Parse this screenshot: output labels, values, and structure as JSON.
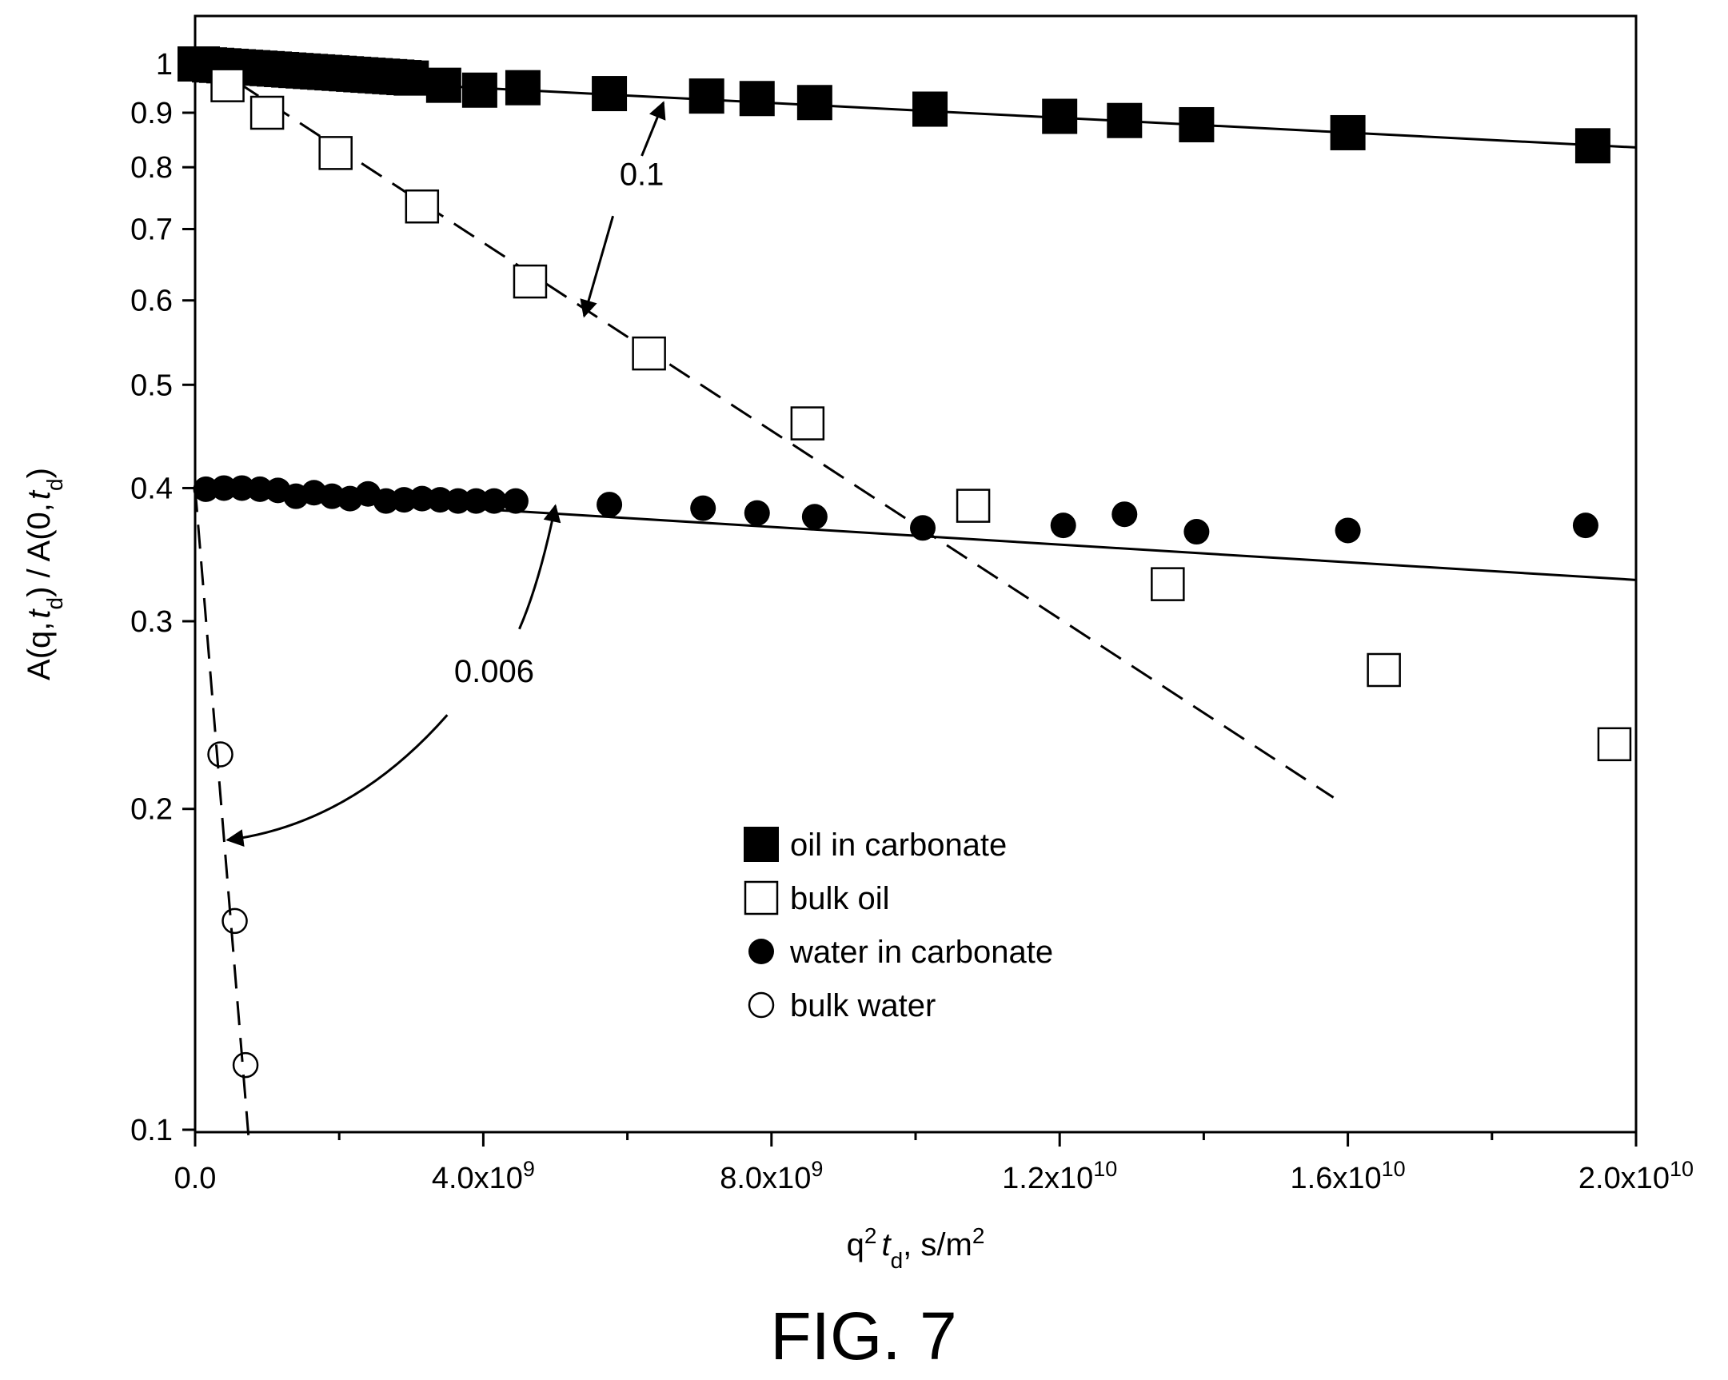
{
  "figure_caption": "FIG. 7",
  "chart_data": {
    "type": "scatter",
    "title": "",
    "xlabel": {
      "base": "q",
      "sup": "2",
      "var": "t",
      "sub": "d",
      "units": ", s/m",
      "units_sup": "2"
    },
    "ylabel": {
      "a": "A(q,",
      "var1": "t",
      "sub1": "d",
      "b": ") / A(0,",
      "var2": "t",
      "sub2": "d",
      "c": ")"
    },
    "xlim": [
      0,
      20000000000
    ],
    "ylim": [
      0.1,
      1.07
    ],
    "y_scale": "log",
    "grid": false,
    "x_ticks": [
      {
        "value": 0,
        "label": "0.0",
        "exp": ""
      },
      {
        "value": 4000000000,
        "label": "4.0x10",
        "exp": "9"
      },
      {
        "value": 8000000000,
        "label": "8.0x10",
        "exp": "9"
      },
      {
        "value": 12000000000,
        "label": "1.2x10",
        "exp": "10"
      },
      {
        "value": 16000000000,
        "label": "1.6x10",
        "exp": "10"
      },
      {
        "value": 20000000000,
        "label": "2.0x10",
        "exp": "10"
      }
    ],
    "x_minor_ticks": [
      2000000000,
      6000000000,
      10000000000,
      14000000000,
      18000000000
    ],
    "y_ticks": [
      {
        "value": 1.0,
        "label": "1"
      },
      {
        "value": 0.9,
        "label": "0.9"
      },
      {
        "value": 0.8,
        "label": "0.8"
      },
      {
        "value": 0.7,
        "label": "0.7"
      },
      {
        "value": 0.6,
        "label": "0.6"
      },
      {
        "value": 0.5,
        "label": "0.5"
      },
      {
        "value": 0.4,
        "label": "0.4"
      },
      {
        "value": 0.3,
        "label": "0.3"
      },
      {
        "value": 0.2,
        "label": "0.2"
      },
      {
        "value": 0.1,
        "label": "0.1"
      }
    ],
    "legend_position": "lower-center",
    "series": [
      {
        "name": "oil in carbonate",
        "marker": "square-filled",
        "x": [
          0,
          100000000,
          200000000,
          300000000,
          400000000,
          500000000,
          600000000,
          700000000,
          800000000,
          900000000,
          1000000000,
          1100000000,
          1200000000,
          1300000000,
          1400000000,
          1500000000,
          1600000000,
          1700000000,
          1800000000,
          1900000000,
          2000000000,
          2100000000,
          2200000000,
          2300000000,
          2400000000,
          2500000000,
          2600000000,
          2700000000,
          2800000000,
          2900000000,
          3000000000,
          3450000000,
          3950000000,
          4550000000,
          5750000000,
          7100000000,
          7800000000,
          8600000000,
          10200000000,
          12000000000,
          12900000000,
          13900000000,
          16000000000,
          19400000000
        ],
        "y": [
          1.0,
          1.0,
          0.998,
          0.997,
          0.996,
          0.995,
          0.994,
          0.993,
          0.992,
          0.991,
          0.99,
          0.989,
          0.988,
          0.987,
          0.986,
          0.985,
          0.984,
          0.983,
          0.982,
          0.981,
          0.98,
          0.979,
          0.978,
          0.977,
          0.976,
          0.975,
          0.974,
          0.973,
          0.972,
          0.971,
          0.97,
          0.955,
          0.945,
          0.95,
          0.938,
          0.933,
          0.928,
          0.92,
          0.907,
          0.893,
          0.885,
          0.877,
          0.862,
          0.838
        ]
      },
      {
        "name": "bulk oil",
        "marker": "square-open",
        "x": [
          450000000,
          1000000000,
          1950000000,
          3150000000,
          4650000000,
          6300000000,
          8500000000,
          10800000000,
          13500000000,
          16500000000,
          19700000000
        ],
        "y": [
          0.955,
          0.9,
          0.825,
          0.735,
          0.625,
          0.535,
          0.46,
          0.385,
          0.325,
          0.27,
          0.23
        ]
      },
      {
        "name": "water in carbonate",
        "marker": "circle-filled",
        "x": [
          150000000,
          400000000,
          650000000,
          900000000,
          1150000000,
          1400000000,
          1650000000,
          1900000000,
          2150000000,
          2400000000,
          2650000000,
          2900000000,
          3150000000,
          3400000000,
          3650000000,
          3900000000,
          4150000000,
          4450000000,
          5750000000,
          7050000000,
          7800000000,
          8600000000,
          10100000000,
          12050000000,
          12900000000,
          13900000000,
          16000000000,
          19300000000
        ],
        "y": [
          0.399,
          0.4,
          0.4,
          0.399,
          0.398,
          0.393,
          0.396,
          0.393,
          0.391,
          0.395,
          0.389,
          0.39,
          0.391,
          0.39,
          0.389,
          0.389,
          0.389,
          0.389,
          0.386,
          0.383,
          0.379,
          0.376,
          0.367,
          0.369,
          0.378,
          0.364,
          0.365,
          0.369
        ]
      },
      {
        "name": "bulk water",
        "marker": "circle-open",
        "x": [
          350000000,
          550000000,
          700000000
        ],
        "y": [
          0.225,
          0.157,
          0.115
        ]
      }
    ],
    "fit_lines": [
      {
        "style": "solid",
        "x": [
          0,
          20000000000
        ],
        "y": [
          0.98,
          0.835
        ]
      },
      {
        "style": "dashed",
        "x": [
          600000000,
          15800000000
        ],
        "y": [
          0.96,
          0.205
        ]
      },
      {
        "style": "solid",
        "x": [
          0,
          20000000000
        ],
        "y": [
          0.397,
          0.328
        ]
      },
      {
        "style": "dashed",
        "x": [
          0,
          750000000
        ],
        "y": [
          0.4,
          0.097
        ]
      }
    ],
    "annotations": [
      {
        "text": "0.1",
        "x": 6200000000,
        "y": 0.77
      },
      {
        "text": "0.006",
        "x": 4150000000,
        "y": 0.263
      }
    ],
    "annotation_arrows": [
      {
        "path": [
          [
            6200000000,
            0.82
          ],
          [
            6500000000,
            0.92
          ]
        ]
      },
      {
        "path": [
          [
            5800000000,
            0.72
          ],
          [
            5400000000,
            0.58
          ]
        ]
      },
      {
        "path": [
          [
            4500000000,
            0.295
          ],
          [
            5000000000,
            0.385
          ]
        ]
      },
      {
        "path": [
          [
            3500000000,
            0.245
          ],
          [
            450000000,
            0.187
          ]
        ]
      }
    ]
  }
}
